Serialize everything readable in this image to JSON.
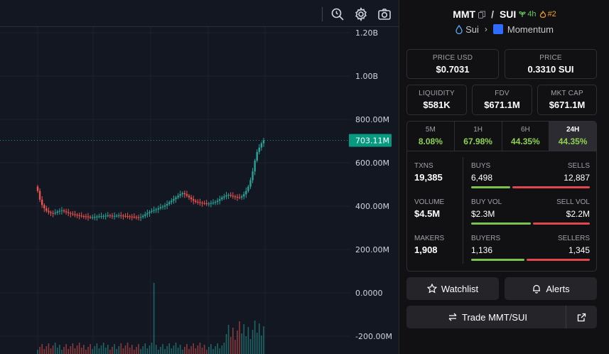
{
  "header": {
    "base": "MMT",
    "quote": "SUI",
    "separator": "/",
    "age": "4h",
    "rank": "#2",
    "chain": "Sui",
    "dex": "Momentum"
  },
  "price_usd": {
    "label": "PRICE USD",
    "value": "$0.7031"
  },
  "price_native": {
    "label": "PRICE",
    "value": "0.3310 SUI"
  },
  "metrics": [
    {
      "label": "LIQUIDITY",
      "value": "$581K"
    },
    {
      "label": "FDV",
      "value": "$671.1M"
    },
    {
      "label": "MKT CAP",
      "value": "$671.1M"
    }
  ],
  "timeframes": [
    {
      "label": "5M",
      "change": "8.08%"
    },
    {
      "label": "1H",
      "change": "67.98%"
    },
    {
      "label": "6H",
      "change": "44.35%"
    },
    {
      "label": "24H",
      "change": "44.35%",
      "active": true
    }
  ],
  "stats": {
    "txns": {
      "label": "TXNS",
      "value": "19,385"
    },
    "volume": {
      "label": "VOLUME",
      "value": "$4.5M"
    },
    "makers": {
      "label": "MAKERS",
      "value": "1,908"
    },
    "buys_sells": {
      "left_label": "BUYS",
      "left_value": "6,498",
      "right_label": "SELLS",
      "right_value": "12,887",
      "left_fraction": 0.335
    },
    "vols": {
      "left_label": "BUY VOL",
      "left_value": "$2.3M",
      "right_label": "SELL VOL",
      "right_value": "$2.2M",
      "left_fraction": 0.51
    },
    "buyers_sellers": {
      "left_label": "BUYERS",
      "left_value": "1,136",
      "right_label": "SELLERS",
      "right_value": "1,345",
      "left_fraction": 0.46
    }
  },
  "buttons": {
    "watchlist": "Watchlist",
    "alerts": "Alerts",
    "trade": "Trade MMT/SUI"
  },
  "toolbar_icons": [
    "zoom-search-icon",
    "settings-gear-icon",
    "camera-icon"
  ],
  "colors": {
    "up": "#26a69a",
    "down": "#ef5350",
    "current_price_tag": "#089981",
    "change_positive": "#8fd14f"
  },
  "chart_data": {
    "type": "candlestick",
    "y_ticks": [
      "1.20B",
      "1.00B",
      "800.00M",
      "600.00M",
      "400.00M",
      "200.00M",
      "0.0000",
      "-200.00M"
    ],
    "ylim": [
      -280000000,
      1200000000
    ],
    "current_value_label": "703.11M",
    "current_value": 703110000,
    "closes": [
      470,
      430,
      405,
      390,
      378,
      372,
      368,
      366,
      370,
      375,
      378,
      380,
      376,
      372,
      368,
      365,
      362,
      360,
      358,
      356,
      354,
      353,
      352,
      350,
      349,
      349,
      350,
      352,
      353,
      354,
      355,
      356,
      357,
      356,
      355,
      355,
      356,
      357,
      356,
      355,
      354,
      353,
      352,
      351,
      350,
      349,
      348,
      350,
      355,
      362,
      368,
      374,
      378,
      382,
      385,
      390,
      395,
      398,
      403,
      410,
      418,
      425,
      433,
      440,
      448,
      455,
      460,
      455,
      448,
      440,
      432,
      425,
      420,
      418,
      416,
      414,
      413,
      412,
      412,
      414,
      416,
      420,
      425,
      432,
      440,
      445,
      450,
      452,
      448,
      445,
      443,
      441,
      440,
      445,
      455,
      470,
      490,
      520,
      560,
      610,
      650,
      670,
      690,
      703
    ]
  }
}
